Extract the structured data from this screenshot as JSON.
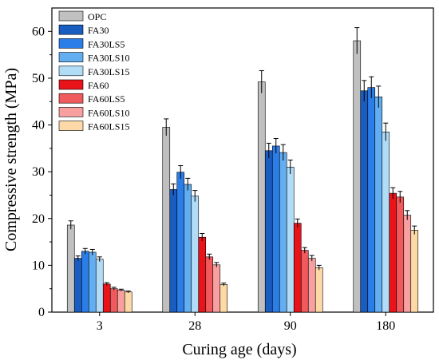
{
  "chart_data": {
    "type": "bar",
    "xlabel": "Curing age (days)",
    "ylabel": "Compressive strength (MPa)",
    "categories": [
      "3",
      "28",
      "90",
      "180"
    ],
    "ylim": [
      0,
      65
    ],
    "yticks": [
      0,
      10,
      20,
      30,
      40,
      50,
      60
    ],
    "grid": false,
    "legend_position": "top-left",
    "series": [
      {
        "name": "OPC",
        "color": "#c0c0c0",
        "values": [
          18.6,
          39.5,
          49.2,
          58.0
        ],
        "errors": [
          0.9,
          1.8,
          2.4,
          2.8
        ]
      },
      {
        "name": "FA30",
        "color": "#1a5dc0",
        "values": [
          11.5,
          26.2,
          34.5,
          47.3
        ],
        "errors": [
          0.5,
          1.2,
          1.6,
          2.2
        ]
      },
      {
        "name": "FA30LS5",
        "color": "#2b7de8",
        "values": [
          13.0,
          29.9,
          35.5,
          48.0
        ],
        "errors": [
          0.6,
          1.4,
          1.6,
          2.3
        ]
      },
      {
        "name": "FA30LS10",
        "color": "#62aef0",
        "values": [
          12.8,
          27.3,
          34.1,
          46.0
        ],
        "errors": [
          0.6,
          1.3,
          1.7,
          2.3
        ]
      },
      {
        "name": "FA30LS15",
        "color": "#b0dcf8",
        "values": [
          11.3,
          24.8,
          31.0,
          38.5
        ],
        "errors": [
          0.5,
          1.2,
          1.5,
          1.9
        ]
      },
      {
        "name": "FA60",
        "color": "#e8141a",
        "values": [
          6.0,
          16.0,
          19.0,
          25.4
        ],
        "errors": [
          0.3,
          0.8,
          0.9,
          1.2
        ]
      },
      {
        "name": "FA60LS5",
        "color": "#f05a5c",
        "values": [
          5.0,
          11.8,
          13.2,
          24.6
        ],
        "errors": [
          0.3,
          0.6,
          0.6,
          1.2
        ]
      },
      {
        "name": "FA60LS10",
        "color": "#f8a0a0",
        "values": [
          4.7,
          10.1,
          11.5,
          20.7
        ],
        "errors": [
          0.2,
          0.5,
          0.6,
          1.0
        ]
      },
      {
        "name": "FA60LS15",
        "color": "#fcd9a6",
        "values": [
          4.3,
          5.9,
          9.5,
          17.5
        ],
        "errors": [
          0.2,
          0.3,
          0.5,
          0.9
        ]
      }
    ]
  }
}
